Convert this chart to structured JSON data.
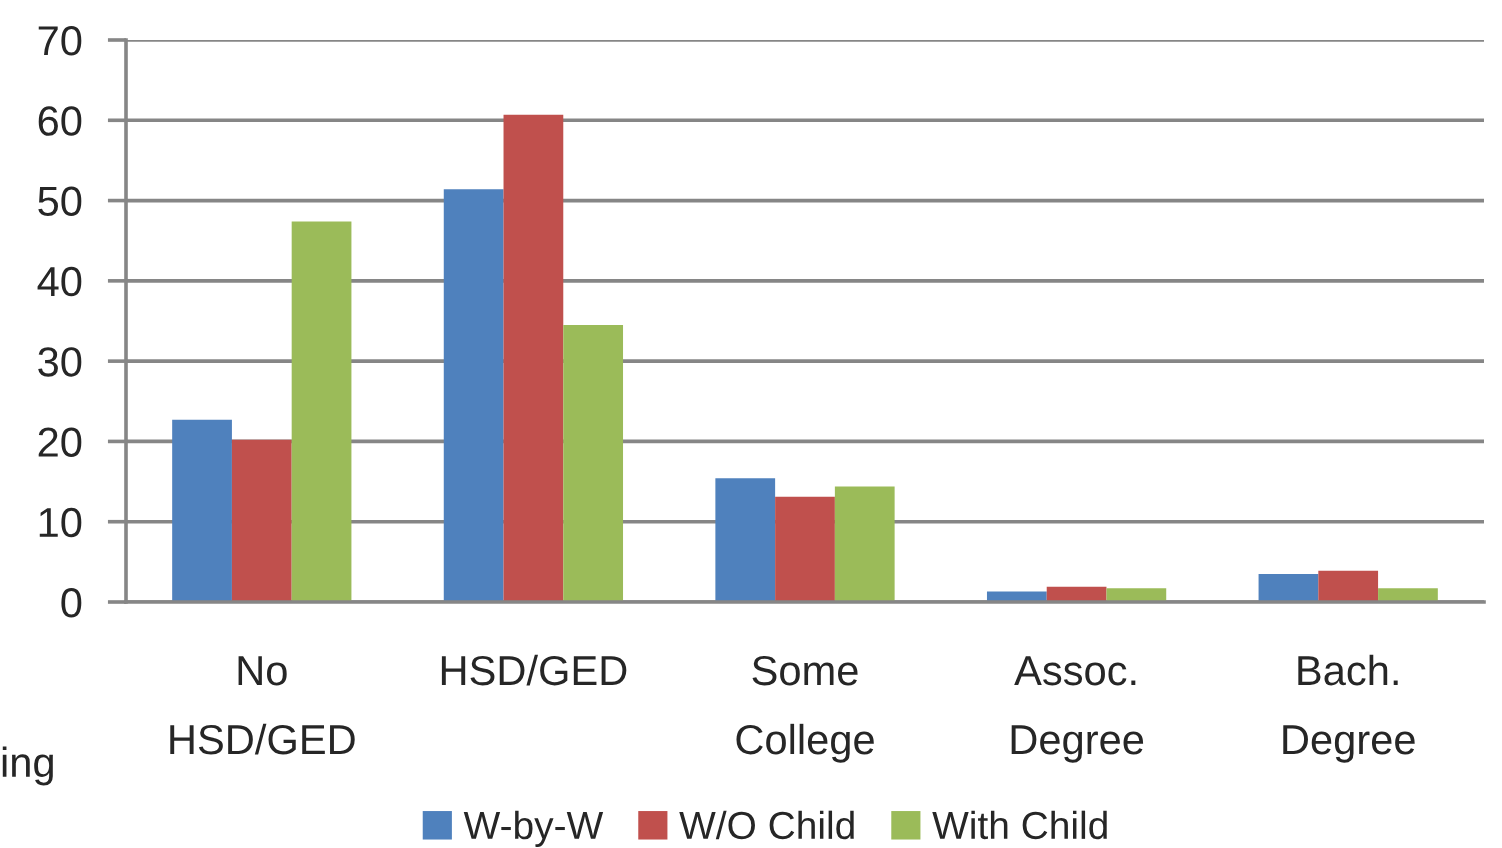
{
  "chart_data": {
    "type": "bar",
    "categories": [
      "No\nHSD/GED",
      "HSD/GED",
      "Some\nCollege",
      "Assoc.\nDegree",
      "Bach.\nDegree"
    ],
    "series": [
      {
        "name": "W-by-W",
        "color": "#4f81bd",
        "values": [
          22.7,
          51.4,
          15.4,
          1.3,
          3.5
        ]
      },
      {
        "name": "W/O Child",
        "color": "#c0504d",
        "values": [
          20.2,
          60.7,
          13.1,
          1.9,
          3.9
        ]
      },
      {
        "name": "With Child",
        "color": "#9bbb59",
        "values": [
          47.4,
          34.5,
          14.4,
          1.7,
          1.7
        ]
      }
    ],
    "ylim": [
      0,
      70
    ],
    "yticks": [
      0,
      10,
      20,
      30,
      40,
      50,
      60,
      70
    ],
    "grid": "y",
    "legend": "bottom",
    "annotations": [
      "ing"
    ]
  }
}
